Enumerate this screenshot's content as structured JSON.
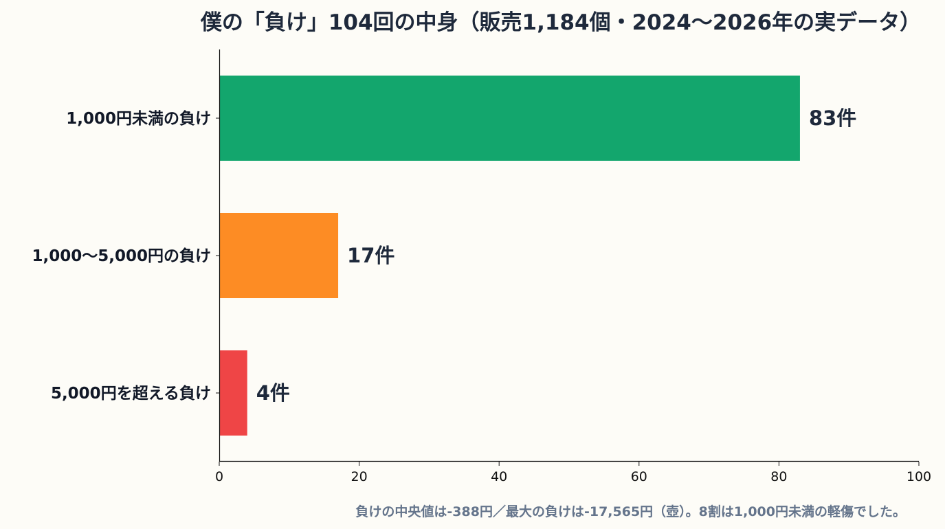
{
  "chart_data": {
    "type": "bar",
    "orientation": "horizontal",
    "title": "僕の「負け」104回の中身（販売1,184個・2024〜2026年の実データ）",
    "categories": [
      "1,000円未満の負け",
      "1,000〜5,000円の負け",
      "5,000円を超える負け"
    ],
    "values": [
      83,
      17,
      4
    ],
    "value_labels": [
      "83件",
      "17件",
      "4件"
    ],
    "colors": [
      "#13a66d",
      "#fd8c24",
      "#ef4546"
    ],
    "xlim": [
      0,
      100
    ],
    "xticks": [
      0,
      20,
      40,
      60,
      80,
      100
    ],
    "xtick_labels": [
      "0",
      "20",
      "40",
      "60",
      "80",
      "100"
    ],
    "grid": false,
    "xlabel": "",
    "ylabel": "",
    "footnote": "負けの中央値は-388円／最大の負けは-17,565円（壺）。8割は1,000円未満の軽傷でした。"
  }
}
